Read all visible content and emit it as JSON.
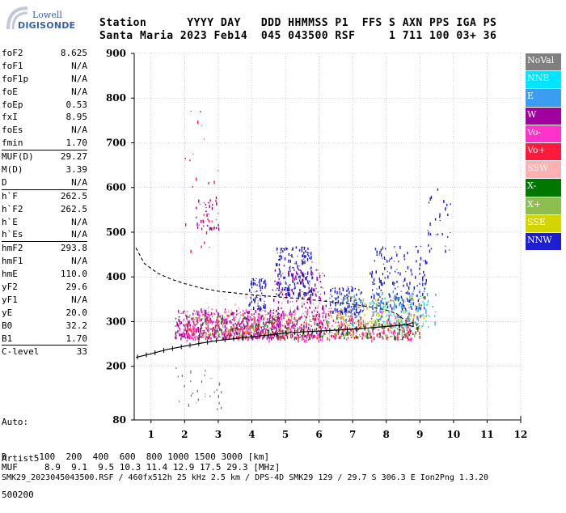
{
  "logo": {
    "top": "Lowell",
    "bottom": "DIGISONDE"
  },
  "header": {
    "row1": "Station      YYYY DAY   DDD HHMMSS P1  FFS S AXN PPS IGA PS",
    "row2": "Santa Maria 2023 Feb14  045 043500 RSF     1 711 100 03+ 36"
  },
  "params": [
    {
      "label": "foF2",
      "value": "8.625",
      "sep": false
    },
    {
      "label": "foF1",
      "value": "N/A",
      "sep": false
    },
    {
      "label": "foF1p",
      "value": "N/A",
      "sep": false
    },
    {
      "label": "foE",
      "value": "N/A",
      "sep": false
    },
    {
      "label": "foEp",
      "value": "0.53",
      "sep": false
    },
    {
      "label": "fxI",
      "value": "8.95",
      "sep": false
    },
    {
      "label": "foEs",
      "value": "N/A",
      "sep": false
    },
    {
      "label": "fmin",
      "value": "1.70",
      "sep": false
    },
    {
      "label": "MUF(D)",
      "value": "29.27",
      "sep": true
    },
    {
      "label": "M(D)",
      "value": "3.39",
      "sep": false
    },
    {
      "label": "D",
      "value": "N/A",
      "sep": false
    },
    {
      "label": "h`F",
      "value": "262.5",
      "sep": true
    },
    {
      "label": "h`F2",
      "value": "262.5",
      "sep": false
    },
    {
      "label": "h`E",
      "value": "N/A",
      "sep": false
    },
    {
      "label": "h`Es",
      "value": "N/A",
      "sep": false
    },
    {
      "label": "hmF2",
      "value": "293.8",
      "sep": true
    },
    {
      "label": "hmF1",
      "value": "N/A",
      "sep": false
    },
    {
      "label": "hmE",
      "value": "110.0",
      "sep": false
    },
    {
      "label": "yF2",
      "value": "29.6",
      "sep": false
    },
    {
      "label": "yF1",
      "value": "N/A",
      "sep": false
    },
    {
      "label": "yE",
      "value": "20.0",
      "sep": false
    },
    {
      "label": "B0",
      "value": "32.2",
      "sep": false
    },
    {
      "label": "B1",
      "value": "1.70",
      "sep": false
    },
    {
      "label": "C-level",
      "value": "33",
      "sep": true
    }
  ],
  "auto": {
    "line1": "Auto:",
    "line2": "Artist5",
    "line3": "500200"
  },
  "footer": {
    "d_row": "D      100  200  400  600  800 1000 1500 3000 [km]",
    "muf_row": "MUF     8.9  9.1  9.5 10.3 11.4 12.9 17.5 29.3 [MHz]",
    "info_row": "SMK29_2023045043500.RSF / 460fx512h 25 kHz 2.5 km / DPS-4D SMK29 129 / 29.7 S 306.3 E Ion2Png 1.3.20"
  },
  "legend": [
    {
      "label": "NoVal",
      "color": "#808080"
    },
    {
      "label": "NNE",
      "color": "#00e5ff"
    },
    {
      "label": "E",
      "color": "#3c9cf0"
    },
    {
      "label": "W",
      "color": "#a000a0"
    },
    {
      "label": "Vo-",
      "color": "#ff33cc"
    },
    {
      "label": "Vo+",
      "color": "#ff1a3c"
    },
    {
      "label": "SSW",
      "color": "#ffb0b0"
    },
    {
      "label": "X-",
      "color": "#007800"
    },
    {
      "label": "X+",
      "color": "#8cbf50"
    },
    {
      "label": "SSE",
      "color": "#d4d400"
    },
    {
      "label": "NNW",
      "color": "#1e1ecf"
    }
  ],
  "chart_data": {
    "type": "scatter",
    "xlim": [
      0.5,
      12
    ],
    "ylim": [
      80,
      900
    ],
    "x_ticks": [
      "1",
      "2",
      "3",
      "4",
      "5",
      "6",
      "7",
      "8",
      "9",
      "10",
      "11",
      "12"
    ],
    "y_ticks": [
      "80",
      "200",
      "300",
      "400",
      "500",
      "600",
      "700",
      "800",
      "900"
    ],
    "grid": true,
    "profile_curve": [
      [
        0.55,
        220
      ],
      [
        1,
        228
      ],
      [
        1.5,
        238
      ],
      [
        2,
        245
      ],
      [
        2.5,
        252
      ],
      [
        3,
        258
      ],
      [
        3.5,
        262
      ],
      [
        4,
        266
      ],
      [
        4.5,
        270
      ],
      [
        5,
        274
      ],
      [
        5.5,
        277
      ],
      [
        6,
        279
      ],
      [
        6.5,
        281
      ],
      [
        7,
        283
      ],
      [
        7.5,
        286
      ],
      [
        8,
        289
      ],
      [
        8.3,
        291
      ],
      [
        8.6,
        293.8
      ]
    ],
    "dashed_curve": [
      [
        0.55,
        465
      ],
      [
        0.8,
        430
      ],
      [
        1.2,
        408
      ],
      [
        1.6,
        395
      ],
      [
        2,
        385
      ],
      [
        2.5,
        375
      ],
      [
        3,
        368
      ],
      [
        3.5,
        364
      ],
      [
        4,
        360
      ],
      [
        4.5,
        357
      ],
      [
        5,
        354
      ],
      [
        5.5,
        351
      ],
      [
        6,
        347
      ],
      [
        6.5,
        343
      ],
      [
        7,
        339
      ],
      [
        7.5,
        333
      ],
      [
        8,
        326
      ],
      [
        8.3,
        318
      ],
      [
        8.6,
        300
      ]
    ],
    "clusters": [
      {
        "color": "#a000a0",
        "x": [
          1.7,
          4.8
        ],
        "y": [
          265,
          330
        ],
        "n": 420
      },
      {
        "color": "#a000a0",
        "x": [
          4.6,
          6.2
        ],
        "y": [
          270,
          420
        ],
        "n": 260
      },
      {
        "color": "#1e1ecf",
        "x": [
          4.7,
          5.8
        ],
        "y": [
          360,
          470
        ],
        "n": 180
      },
      {
        "color": "#1e1ecf",
        "x": [
          3.9,
          4.4
        ],
        "y": [
          330,
          400
        ],
        "n": 70
      },
      {
        "color": "#1e1ecf",
        "x": [
          6.3,
          7.3
        ],
        "y": [
          320,
          380
        ],
        "n": 120
      },
      {
        "color": "#1e1ecf",
        "x": [
          7.5,
          9.2
        ],
        "y": [
          330,
          470
        ],
        "n": 200
      },
      {
        "color": "#ff1a3c",
        "x": [
          2.0,
          9.0
        ],
        "y": [
          265,
          320
        ],
        "n": 450
      },
      {
        "color": "#ff33cc",
        "x": [
          1.8,
          8.8
        ],
        "y": [
          260,
          330
        ],
        "n": 300
      },
      {
        "color": "#007800",
        "x": [
          2.0,
          9.0
        ],
        "y": [
          265,
          315
        ],
        "n": 160
      },
      {
        "color": "#8cbf50",
        "x": [
          2.5,
          9.0
        ],
        "y": [
          270,
          320
        ],
        "n": 120
      },
      {
        "color": "#d4d400",
        "x": [
          6.5,
          9.2
        ],
        "y": [
          290,
          360
        ],
        "n": 100
      },
      {
        "color": "#3c9cf0",
        "x": [
          6.5,
          9.5
        ],
        "y": [
          290,
          370
        ],
        "n": 120
      },
      {
        "color": "#00e5ff",
        "x": [
          7.5,
          9.3
        ],
        "y": [
          290,
          360
        ],
        "n": 60
      },
      {
        "color": "#ffb0b0",
        "x": [
          2.5,
          6
        ],
        "y": [
          300,
          360
        ],
        "n": 60
      },
      {
        "color": "#a000a0",
        "x": [
          2.3,
          3.0
        ],
        "y": [
          510,
          580
        ],
        "n": 40
      },
      {
        "color": "#808080",
        "x": [
          1.7,
          3.1
        ],
        "y": [
          100,
          200
        ],
        "n": 30
      },
      {
        "color": "#ff1a3c",
        "x": [
          2.0,
          3.0
        ],
        "y": [
          460,
          780
        ],
        "n": 25
      },
      {
        "color": "#1e1ecf",
        "x": [
          9.2,
          9.9
        ],
        "y": [
          460,
          600
        ],
        "n": 30
      }
    ]
  }
}
